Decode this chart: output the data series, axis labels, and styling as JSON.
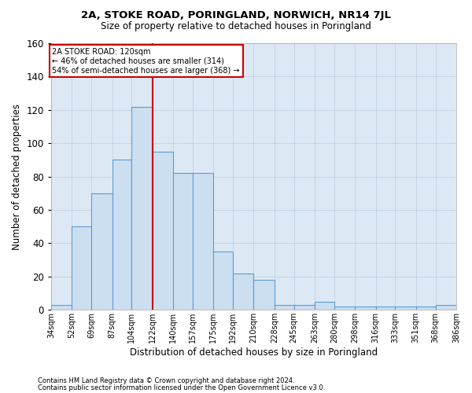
{
  "title": "2A, STOKE ROAD, PORINGLAND, NORWICH, NR14 7JL",
  "subtitle": "Size of property relative to detached houses in Poringland",
  "xlabel": "Distribution of detached houses by size in Poringland",
  "ylabel": "Number of detached properties",
  "footnote1": "Contains HM Land Registry data © Crown copyright and database right 2024.",
  "footnote2": "Contains public sector information licensed under the Open Government Licence v3.0.",
  "annotation_title": "2A STOKE ROAD: 120sqm",
  "annotation_line1": "← 46% of detached houses are smaller (314)",
  "annotation_line2": "54% of semi-detached houses are larger (368) →",
  "bar_edge_color": "#5b9bd5",
  "bar_face_color": "#ccdff0",
  "vline_color": "#cc0000",
  "annotation_box_color": "#cc0000",
  "grid_color": "#bbccdd",
  "bg_color": "#dce9f5",
  "categories": [
    "34sqm",
    "52sqm",
    "69sqm",
    "87sqm",
    "104sqm",
    "122sqm",
    "140sqm",
    "157sqm",
    "175sqm",
    "192sqm",
    "210sqm",
    "228sqm",
    "245sqm",
    "263sqm",
    "280sqm",
    "298sqm",
    "316sqm",
    "333sqm",
    "351sqm",
    "368sqm",
    "386sqm"
  ],
  "bin_edges": [
    34,
    52,
    69,
    87,
    104,
    122,
    140,
    157,
    175,
    192,
    210,
    228,
    245,
    263,
    280,
    298,
    316,
    333,
    351,
    368,
    386
  ],
  "values": [
    3,
    50,
    70,
    90,
    122,
    95,
    82,
    82,
    35,
    22,
    18,
    3,
    3,
    5,
    2,
    2,
    2,
    2,
    2,
    3
  ],
  "ylim": [
    0,
    160
  ],
  "yticks": [
    0,
    20,
    40,
    60,
    80,
    100,
    120,
    140,
    160
  ]
}
